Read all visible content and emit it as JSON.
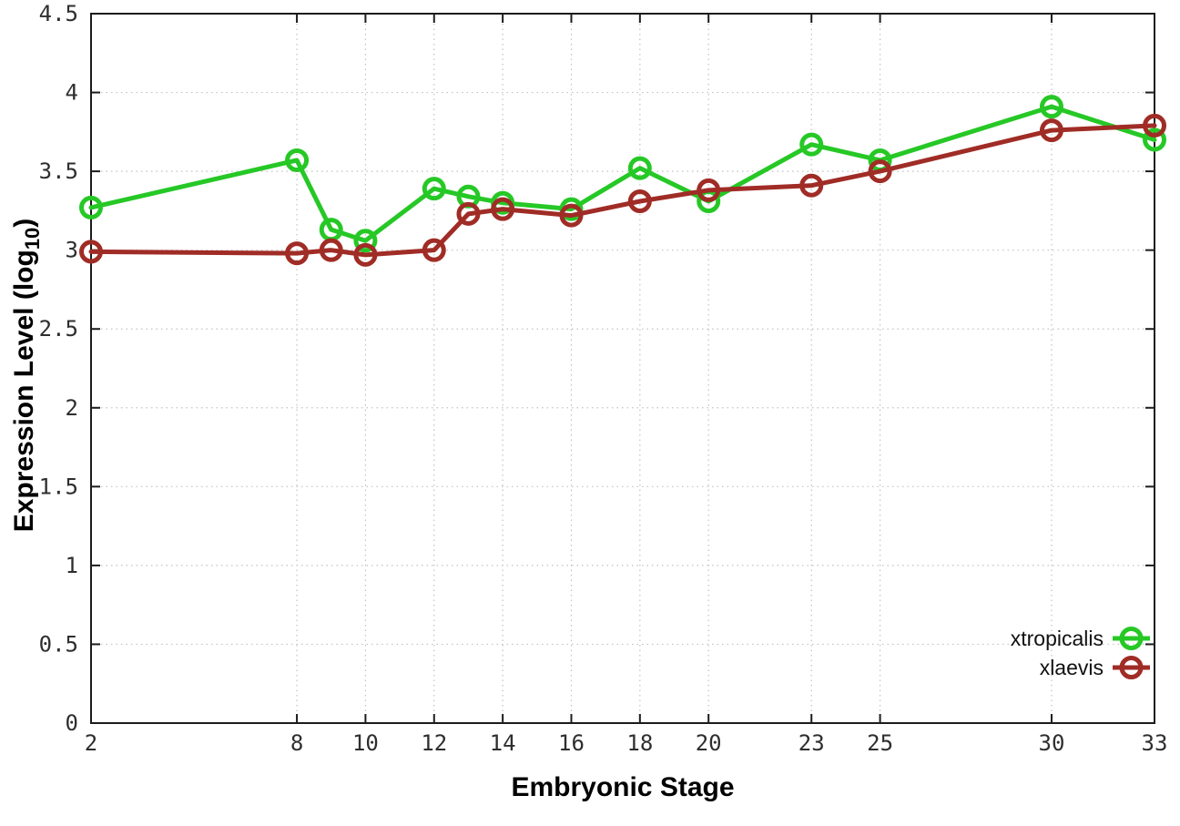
{
  "figure": {
    "background": "#ffffff",
    "border_color": "#1c1c1c",
    "grid_color": "#c2c2c2",
    "tick_label_color": "#2e2e2e"
  },
  "chart_data": {
    "type": "line",
    "title": "",
    "xlabel": "Embryonic Stage",
    "ylabel": "Expression Level (log10)",
    "ylabel_parts": {
      "pre": "Expression Level (log",
      "sub": "10",
      "post": ")"
    },
    "x": [
      2,
      8,
      9,
      10,
      12,
      13,
      14,
      16,
      18,
      20,
      23,
      25,
      30,
      33
    ],
    "series": [
      {
        "name": "xtropicalis",
        "color": "#26c826",
        "marker": "open-circle",
        "values": [
          3.27,
          3.57,
          3.13,
          3.06,
          3.39,
          3.34,
          3.3,
          3.26,
          3.52,
          3.31,
          3.67,
          3.57,
          3.91,
          3.7
        ]
      },
      {
        "name": "xlaevis",
        "color": "#a02c26",
        "marker": "open-circle",
        "values": [
          2.99,
          2.98,
          3.0,
          2.97,
          3.0,
          3.23,
          3.26,
          3.22,
          3.31,
          3.38,
          3.41,
          3.5,
          3.76,
          3.79
        ]
      }
    ],
    "xlim": [
      2,
      33
    ],
    "ylim": [
      0,
      4.5
    ],
    "xticks": [
      2,
      8,
      10,
      12,
      14,
      16,
      18,
      20,
      23,
      25,
      30,
      33
    ],
    "xtick_labels": [
      "2",
      "8",
      "10",
      "12",
      "14",
      "16",
      "18",
      "20",
      "23",
      "25",
      "30",
      "33"
    ],
    "yticks": [
      0,
      0.5,
      1,
      1.5,
      2,
      2.5,
      3,
      3.5,
      4,
      4.5
    ],
    "ytick_labels": [
      "0",
      "0.5",
      "1",
      "1.5",
      "2",
      "2.5",
      "3",
      "3.5",
      "4",
      "4.5"
    ],
    "grid": true,
    "grid_style": "dotted",
    "legend_position": "bottom-right",
    "legend": [
      "xtropicalis",
      "xlaevis"
    ]
  }
}
